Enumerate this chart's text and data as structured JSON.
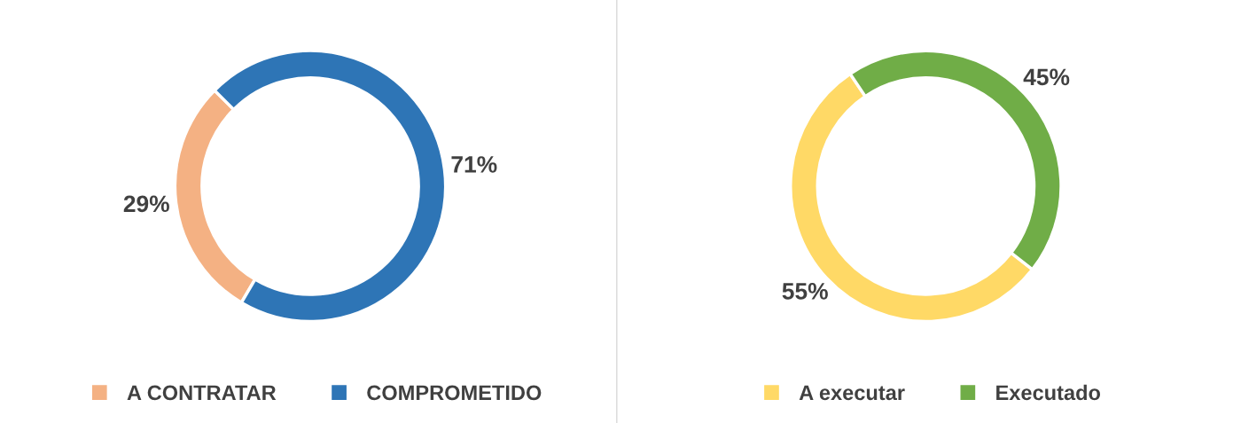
{
  "chart_data": [
    {
      "type": "donut",
      "categories": [
        "A CONTRATAR",
        "COMPROMETIDO"
      ],
      "values": [
        29,
        71
      ],
      "colors": [
        "#f4b183",
        "#2e75b6"
      ],
      "value_labels": [
        "29%",
        "71%"
      ],
      "legend": "bottom"
    },
    {
      "type": "donut",
      "categories": [
        "A executar",
        "Executado"
      ],
      "values": [
        55,
        45
      ],
      "colors": [
        "#ffd966",
        "#70ad47"
      ],
      "value_labels": [
        "55%",
        "45%"
      ],
      "legend": "bottom"
    }
  ]
}
